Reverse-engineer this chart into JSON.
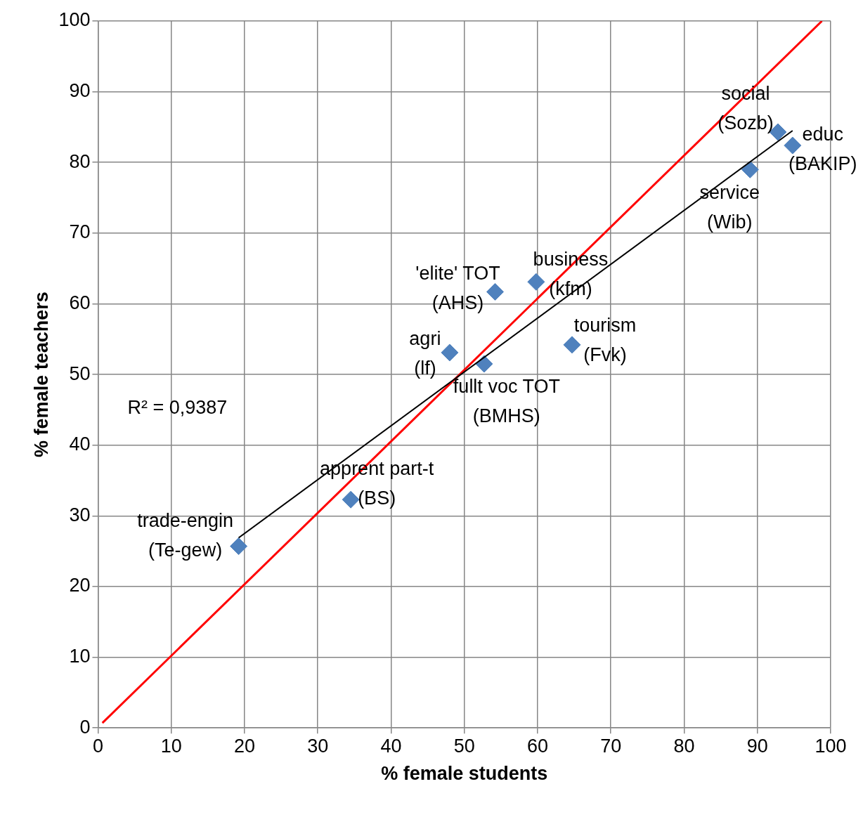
{
  "chart_data": {
    "type": "scatter",
    "xlabel": "% female students",
    "ylabel": "% female teachers",
    "xlim": [
      0,
      100
    ],
    "ylim": [
      0,
      100
    ],
    "xticks": [
      0,
      10,
      20,
      30,
      40,
      50,
      60,
      70,
      80,
      90,
      100
    ],
    "yticks": [
      0,
      10,
      20,
      30,
      40,
      50,
      60,
      70,
      80,
      90,
      100
    ],
    "grid": true,
    "legend": false,
    "marker": "diamond",
    "line_style": "solid",
    "series": [
      {
        "color": "#4f81bd",
        "x": [
          19.2,
          34.5,
          48.0,
          52.7,
          54.2,
          59.8,
          64.7,
          89.0,
          92.8,
          94.8
        ],
        "values": [
          25.7,
          32.3,
          53.1,
          51.5,
          61.7,
          63.1,
          54.2,
          79.0,
          84.3,
          82.4
        ]
      },
      {
        "type": "line",
        "marker": "none",
        "color": "#000000",
        "x": [
          19.2,
          94.8
        ],
        "values": [
          26.9,
          84.5
        ]
      },
      {
        "type": "line",
        "marker": "none",
        "color": "#ff0000",
        "x": [
          0.6,
          98.8
        ],
        "values": [
          0.7,
          100
        ]
      }
    ],
    "annotations": [
      {
        "text": "trade-engin\n(Te-gew)",
        "x": 19.2,
        "y": 25.7
      },
      {
        "text": "apprent part-t\n(BS)",
        "x": 34.5,
        "y": 32.3
      },
      {
        "text": "agri\n(lf)",
        "x": 48.0,
        "y": 53.1
      },
      {
        "text": "fullt voc TOT\n(BMHS)",
        "x": 52.7,
        "y": 51.5
      },
      {
        "text": "'elite' TOT\n(AHS)",
        "x": 54.2,
        "y": 61.7
      },
      {
        "text": "business\n(kfm)",
        "x": 59.8,
        "y": 63.1
      },
      {
        "text": "tourism\n(Fvk)",
        "x": 64.7,
        "y": 54.2
      },
      {
        "text": "service\n(Wib)",
        "x": 89.0,
        "y": 79.0
      },
      {
        "text": "social\n(Sozb)",
        "x": 92.8,
        "y": 84.3
      },
      {
        "text": "educ\n(BAKIP)",
        "x": 94.8,
        "y": 82.4
      },
      "R² = 0,9387"
    ]
  }
}
